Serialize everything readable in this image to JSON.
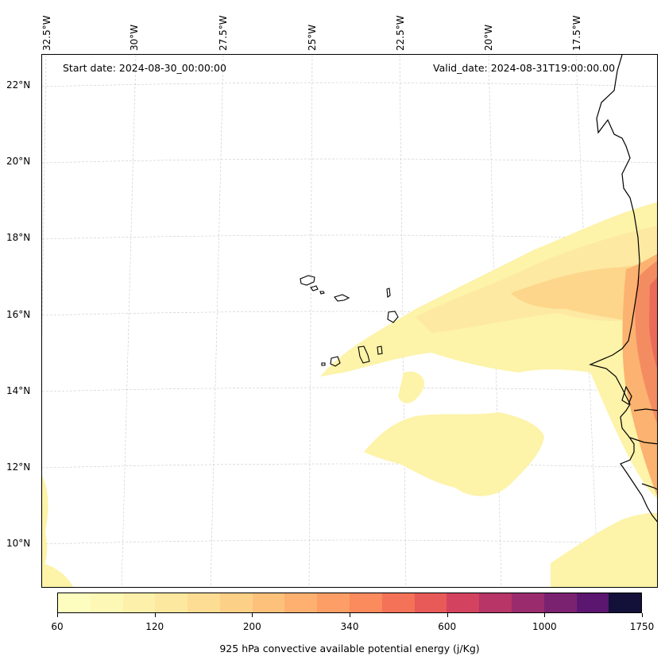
{
  "header": {
    "start_date": "Start date: 2024-08-30_00:00:00",
    "valid_date": "Valid_date: 2024-08-31T19:00:00.00"
  },
  "map": {
    "lon_labels": [
      "32.5°W",
      "30°W",
      "27.5°W",
      "25°W",
      "22.5°W",
      "20°W",
      "17.5°W"
    ],
    "lat_labels": [
      "22°N",
      "20°N",
      "18°N",
      "16°N",
      "14°N",
      "12°N",
      "10°N"
    ],
    "field": "925 hPa convective available potential energy",
    "land_color": "#000000"
  },
  "colorbar": {
    "title": "925 hPa convective available potential energy (j/Kg)",
    "tick_labels": [
      "60",
      "120",
      "200",
      "340",
      "600",
      "1000",
      "1750"
    ],
    "colors": [
      "#fdfdc0",
      "#fdf8b6",
      "#fdf0ab",
      "#fde8a0",
      "#fddd94",
      "#fdd087",
      "#fdc17b",
      "#fdb070",
      "#fc9e66",
      "#fb8a5d",
      "#f47257",
      "#e85a58",
      "#d3435f",
      "#b73567",
      "#9a2c6d",
      "#7a2270",
      "#5b1670",
      "#13103a"
    ]
  }
}
